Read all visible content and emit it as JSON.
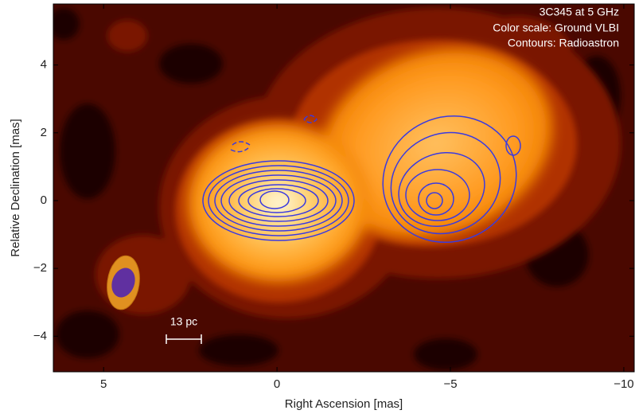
{
  "chart_data": {
    "type": "image",
    "annotations": [
      "3C345 at 5 GHz",
      "Color scale: Ground VLBI",
      "Contours: Radioastron"
    ],
    "scale_bar_label": "13 pc",
    "x_label": "Right Ascension [mas]",
    "y_label": "Relative Declination [mas]",
    "xlim": [
      6.45,
      -10.3
    ],
    "ylim": [
      -5.05,
      5.8
    ],
    "xticks": [
      5,
      0,
      {
        "value": -5,
        "label": "−5"
      },
      {
        "value": -10,
        "label": "−10"
      }
    ],
    "yticks": [
      {
        "value": -4,
        "label": "−4"
      },
      {
        "value": -2,
        "label": "−2"
      },
      0,
      2,
      4
    ]
  }
}
